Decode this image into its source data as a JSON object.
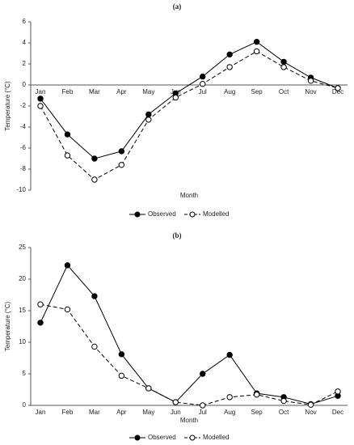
{
  "chart_data": [
    {
      "type": "line",
      "title": "(a)",
      "y_label": "Temperature (°C)",
      "x_label": "Month",
      "categories": [
        "Jan",
        "Feb",
        "Mar",
        "Apr",
        "May",
        "Jun",
        "Jul",
        "Aug",
        "Sep",
        "Oct",
        "Nov",
        "Dec"
      ],
      "ylim": [
        -10,
        6
      ],
      "yticks": [
        -10,
        -8,
        -6,
        -4,
        -2,
        0,
        2,
        4,
        6
      ],
      "series": [
        {
          "name": "Observed",
          "color": "#000000",
          "marker": "filled",
          "dashed": false,
          "values": [
            -1.3,
            -4.7,
            -7.0,
            -6.3,
            -2.8,
            -0.8,
            0.8,
            2.9,
            4.1,
            2.2,
            0.7,
            -0.3
          ]
        },
        {
          "name": "Modelled",
          "color": "#000000",
          "marker": "open",
          "dashed": true,
          "values": [
            -2.0,
            -6.7,
            -9.0,
            -7.6,
            -3.3,
            -1.2,
            0.1,
            1.7,
            3.2,
            1.7,
            0.4,
            -0.3
          ]
        }
      ]
    },
    {
      "type": "line",
      "title": "(b)",
      "y_label": "Temperature (°C)",
      "x_label": "Month",
      "categories": [
        "Jan",
        "Feb",
        "Mar",
        "Apr",
        "May",
        "Jun",
        "Jul",
        "Aug",
        "Sep",
        "Oct",
        "Nov",
        "Dec"
      ],
      "ylim": [
        0,
        25
      ],
      "yticks": [
        0,
        5,
        10,
        15,
        20,
        25
      ],
      "series": [
        {
          "name": "Observed",
          "color": "#000000",
          "marker": "filled",
          "dashed": false,
          "values": [
            13.1,
            22.2,
            17.3,
            8.1,
            2.7,
            0.5,
            5.0,
            8.0,
            1.9,
            1.3,
            0.2,
            1.5
          ]
        },
        {
          "name": "Modelled",
          "color": "#000000",
          "marker": "open",
          "dashed": true,
          "values": [
            16.0,
            15.2,
            9.3,
            4.7,
            2.7,
            0.5,
            0.0,
            1.3,
            1.7,
            0.7,
            0.1,
            2.2
          ]
        }
      ]
    }
  ]
}
